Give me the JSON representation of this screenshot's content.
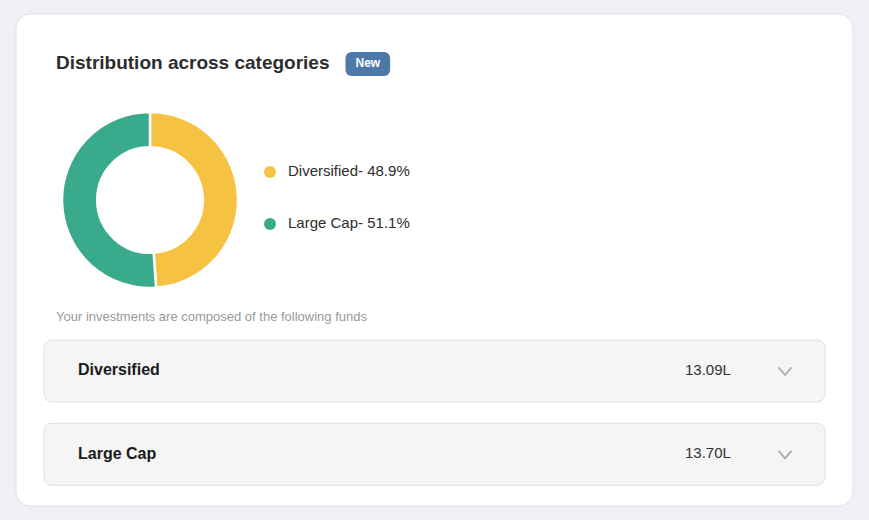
{
  "chart_data": {
    "type": "donut",
    "title": "Distribution across categories",
    "subtitle": "Your investments are composed of the following funds",
    "annotations": [
      "New"
    ],
    "categories": [
      "Diversified- 48.9%",
      "Large Cap- 51.1%"
    ],
    "values": [
      48.9,
      51.1
    ],
    "colors": [
      "#f5c242",
      "#3aaa8c"
    ],
    "legend": "right",
    "rows": [
      {
        "label": "Diversified",
        "value": "13.09L"
      },
      {
        "label": "Large Cap",
        "value": "13.70L"
      }
    ]
  }
}
